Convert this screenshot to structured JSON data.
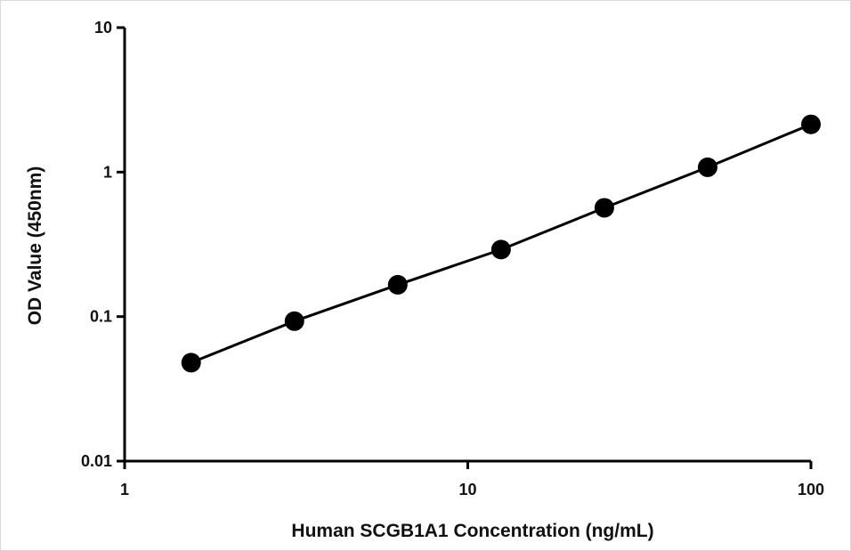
{
  "chart_data": {
    "type": "scatter",
    "xlabel": "Human SCGB1A1 Concentration (ng/mL)",
    "ylabel": "OD Value (450nm)",
    "x_scale": "log",
    "y_scale": "log",
    "xlim": [
      1,
      100
    ],
    "ylim": [
      0.01,
      10
    ],
    "x_ticks": [
      "1",
      "10",
      "100"
    ],
    "y_ticks": [
      "0.01",
      "0.1",
      "1",
      "10"
    ],
    "grid": false,
    "legend": "none",
    "series": [
      {
        "x": [
          1.5625,
          3.125,
          6.25,
          12.5,
          25,
          50,
          100
        ],
        "y": [
          0.048,
          0.093,
          0.166,
          0.291,
          0.566,
          1.08,
          2.14
        ],
        "marker": "circle",
        "connected": true,
        "color": "#000000"
      }
    ]
  }
}
